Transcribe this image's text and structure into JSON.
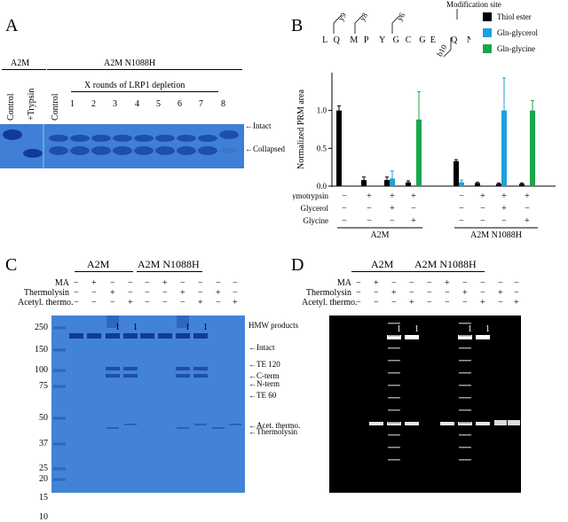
{
  "panel_a": {
    "letter": "A",
    "group_a2m": "A2M",
    "group_mutant": "A2M N1088H",
    "lane_labels": [
      "Control",
      "+Trypsin",
      "Control",
      "1",
      "2",
      "3",
      "4",
      "5",
      "6",
      "7",
      "8"
    ],
    "depletion_title": "X rounds of LRP1 depletion",
    "markers": [
      "Intact",
      "Collapsed"
    ]
  },
  "panel_b": {
    "letter": "B",
    "modification_site": "Modification site",
    "peptide": [
      "L",
      "Q",
      "M",
      "P",
      "Y",
      "G",
      "C",
      "G",
      "E",
      "Q",
      "N"
    ],
    "ions": [
      "y9",
      "y8",
      "y6",
      "b10"
    ],
    "legend": [
      {
        "name": "Thiol ester",
        "color": "#000000"
      },
      {
        "name": "Gln-glycerol",
        "color": "#1ea0dc"
      },
      {
        "name": "Gln-glycine",
        "color": "#1aa64a"
      }
    ],
    "row_labels": [
      "Chymotrypsin",
      "Glycerol",
      "Glycine"
    ],
    "condition_signs": [
      [
        "−",
        "−",
        "−"
      ],
      [
        "+",
        "−",
        "−"
      ],
      [
        "+",
        "+",
        "−"
      ],
      [
        "+",
        "−",
        "+"
      ],
      [
        "−",
        "−",
        "−"
      ],
      [
        "+",
        "−",
        "−"
      ],
      [
        "+",
        "+",
        "−"
      ],
      [
        "+",
        "−",
        "+"
      ]
    ],
    "group_labels": [
      "A2M",
      "A2M N1088H"
    ]
  },
  "chart_data": {
    "type": "bar",
    "ylabel": "Normalized PRM area",
    "ylim": [
      0,
      1.5
    ],
    "yticks": [
      "0.0",
      "0.5",
      "1.0"
    ],
    "groups": [
      "A2M",
      "A2M N1088H"
    ],
    "conditions": [
      {
        "group": "A2M",
        "chymotrypsin": "-",
        "glycerol": "-",
        "glycine": "-"
      },
      {
        "group": "A2M",
        "chymotrypsin": "+",
        "glycerol": "-",
        "glycine": "-"
      },
      {
        "group": "A2M",
        "chymotrypsin": "+",
        "glycerol": "+",
        "glycine": "-"
      },
      {
        "group": "A2M",
        "chymotrypsin": "+",
        "glycerol": "-",
        "glycine": "+"
      },
      {
        "group": "A2M N1088H",
        "chymotrypsin": "-",
        "glycerol": "-",
        "glycine": "-"
      },
      {
        "group": "A2M N1088H",
        "chymotrypsin": "+",
        "glycerol": "-",
        "glycine": "-"
      },
      {
        "group": "A2M N1088H",
        "chymotrypsin": "+",
        "glycerol": "+",
        "glycine": "-"
      },
      {
        "group": "A2M N1088H",
        "chymotrypsin": "+",
        "glycerol": "-",
        "glycine": "+"
      }
    ],
    "series": [
      {
        "name": "Thiol ester",
        "color": "#000000",
        "values": [
          1.0,
          0.08,
          0.08,
          0.05,
          0.33,
          0.04,
          0.03,
          0.03
        ],
        "errors": [
          0.06,
          0.04,
          0.04,
          0.02,
          0.02,
          0.01,
          0.01,
          0.01
        ]
      },
      {
        "name": "Gln-glycerol",
        "color": "#1ea0dc",
        "values": [
          0.0,
          0.0,
          0.1,
          0.0,
          0.05,
          0.0,
          1.0,
          0.0
        ],
        "errors": [
          0.0,
          0.0,
          0.1,
          0.0,
          0.03,
          0.0,
          0.43,
          0.0
        ]
      },
      {
        "name": "Gln-glycine",
        "color": "#1aa64a",
        "values": [
          0.0,
          0.0,
          0.0,
          0.88,
          0.0,
          0.0,
          0.0,
          1.0
        ],
        "errors": [
          0.0,
          0.0,
          0.0,
          0.37,
          0.0,
          0.0,
          0.0,
          0.13
        ]
      }
    ]
  },
  "panel_c": {
    "letter": "C",
    "group_a2m": "A2M",
    "group_mutant": "A2M N1088H",
    "row_labels": [
      "MA",
      "Thermolysin",
      "Acetyl. thermo."
    ],
    "signs": [
      [
        "−",
        "+",
        "−",
        "−",
        "−",
        "+",
        "−",
        "−",
        "−",
        "−"
      ],
      [
        "−",
        "−",
        "+",
        "−",
        "−",
        "−",
        "+",
        "−",
        "+",
        "−"
      ],
      [
        "−",
        "−",
        "−",
        "+",
        "−",
        "−",
        "−",
        "+",
        "−",
        "+"
      ]
    ],
    "mw_ladder": [
      "250",
      "150",
      "100",
      "75",
      "50",
      "37",
      "25",
      "20",
      "15",
      "10"
    ],
    "annotations": [
      "HMW products",
      "Intact",
      "TE 120",
      "C-term",
      "N-term",
      "TE 60",
      "Acet. thermo.",
      "Thermolysin"
    ],
    "mark": "1"
  },
  "panel_d": {
    "letter": "D",
    "group_a2m": "A2M",
    "group_mutant": "A2M N1088H",
    "row_labels": [
      "MA",
      "Thermolysin",
      "Acetyl. thermo."
    ],
    "signs": [
      [
        "−",
        "+",
        "−",
        "−",
        "−",
        "+",
        "−",
        "−",
        "−",
        "−"
      ],
      [
        "−",
        "−",
        "+",
        "−",
        "−",
        "−",
        "+",
        "−",
        "+",
        "−"
      ],
      [
        "−",
        "−",
        "−",
        "+",
        "−",
        "−",
        "−",
        "+",
        "−",
        "+"
      ]
    ],
    "mark": "1"
  }
}
